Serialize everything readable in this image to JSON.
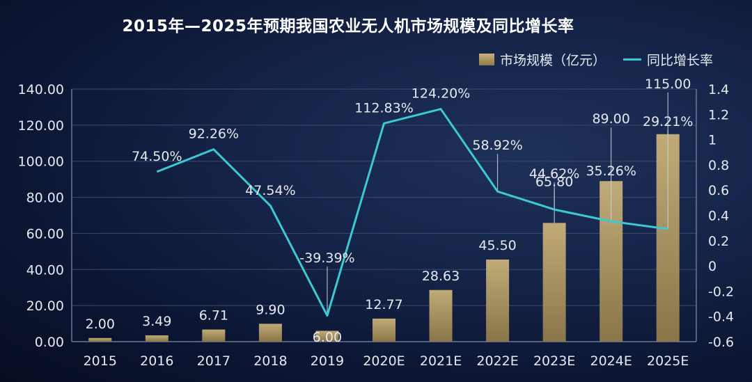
{
  "chart_data": {
    "type": "bar",
    "title": "2015年—2025年预期我国农业无人机市场规模及同比增长率",
    "categories": [
      "2015",
      "2016",
      "2017",
      "2018",
      "2019",
      "2020E",
      "2021E",
      "2022E",
      "2023E",
      "2024E",
      "2025E"
    ],
    "series": [
      {
        "name": "市场规模（亿元）",
        "type": "bar",
        "axis": "left",
        "values": [
          2.0,
          3.49,
          6.71,
          9.9,
          6.0,
          12.77,
          28.63,
          45.5,
          65.8,
          89.0,
          115.0
        ],
        "labels": [
          "2.00",
          "3.49",
          "6.71",
          "9.90",
          "6.00",
          "12.77",
          "28.63",
          "45.50",
          "65.80",
          "89.00",
          "115.00"
        ]
      },
      {
        "name": "同比增长率",
        "type": "line",
        "axis": "right",
        "values": [
          null,
          0.745,
          0.9226,
          0.4754,
          -0.3939,
          1.1283,
          1.242,
          0.5892,
          0.4462,
          0.3526,
          0.2921
        ],
        "labels": [
          "",
          "74.50%",
          "92.26%",
          "47.54%",
          "-39.39%",
          "112.83%",
          "124.20%",
          "58.92%",
          "44.62%",
          "35.26%",
          "29.21%"
        ]
      }
    ],
    "y_left": {
      "lim": [
        0,
        140
      ],
      "ticks": [
        "0.00",
        "20.00",
        "40.00",
        "60.00",
        "80.00",
        "100.00",
        "120.00",
        "140.00"
      ]
    },
    "y_right": {
      "lim": [
        -0.6,
        1.4
      ],
      "ticks": [
        "-0.6",
        "-0.4",
        "-0.2",
        "0",
        "0.2",
        "0.4",
        "0.6",
        "0.8",
        "1",
        "1.2",
        "1.4"
      ]
    },
    "xlabel": "",
    "ylabel": "",
    "legend": "top-right",
    "grid": true,
    "colors": {
      "bar_top": "#c9b27a",
      "bar_bottom": "#8f7a49",
      "line": "#3cc9d2",
      "text": "#e6e9f0",
      "grid": "#3a4a6c"
    }
  }
}
